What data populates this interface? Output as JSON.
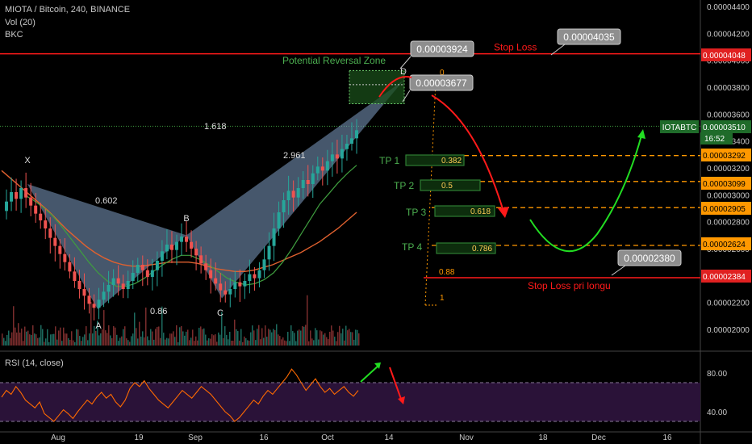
{
  "header": {
    "symbol_line": "MIOTA / Bitcoin, 240, BINANCE",
    "vol_line": "Vol (20)",
    "bkc_line": "BKC",
    "rsi_label": "RSI (14, close)"
  },
  "colors": {
    "background": "#000000",
    "candle_up": "#26a69a",
    "candle_down": "#ef5350",
    "pattern_fill": "#7f9fc4",
    "ma_orange": "#e0612f",
    "ma_green": "#3f9e3f",
    "stop_loss": "#ff1a1a",
    "tp_line": "#ff9800",
    "tp_box": "#2e7d32",
    "tp_text": "#4caf50",
    "rsi_line": "#ff6a00",
    "rsi_band": "#2a1238",
    "arrow_green": "#22dd22",
    "arrow_red": "#ff1a1a"
  },
  "chart_data": {
    "type": "line",
    "title": "MIOTA / Bitcoin, 240, BINANCE",
    "y_axis": {
      "ticks": [
        "0.00004400",
        "0.00004200",
        "0.00004000",
        "0.00003800",
        "0.00003600",
        "0.00003400",
        "0.00003200",
        "0.00003000",
        "0.00002800",
        "0.00002600",
        "0.00002400",
        "0.00002200",
        "0.00002000"
      ],
      "range": [
        1.96e-05,
        4.48e-05
      ]
    },
    "x_axis": {
      "ticks": [
        "Aug",
        "19",
        "Sep",
        "16",
        "Oct",
        "14",
        "Nov",
        "18",
        "Dec",
        "16"
      ]
    },
    "price_labels": [
      {
        "value": "0.00004048",
        "kind": "stop_loss"
      },
      {
        "value": "0.00003510",
        "kind": "current"
      },
      {
        "value": "16:52",
        "kind": "timer"
      },
      {
        "value": "0.00003292",
        "kind": "tp"
      },
      {
        "value": "0.00003099",
        "kind": "tp"
      },
      {
        "value": "0.00002905",
        "kind": "tp"
      },
      {
        "value": "0.00002624",
        "kind": "tp"
      },
      {
        "value": "0.00002384",
        "kind": "stop_long"
      }
    ],
    "symbol_tag": "IOTABTC",
    "pattern_points": [
      {
        "label": "X",
        "y": 3.08e-05
      },
      {
        "label": "A",
        "y": 2.15e-05
      },
      {
        "label": "B",
        "y": 2.7e-05
      },
      {
        "label": "C",
        "y": 2.23e-05
      },
      {
        "label": "D",
        "y": 3.85e-05
      }
    ],
    "pattern_ratios": [
      "0.602",
      "0.86",
      "1.618",
      "2.961"
    ],
    "prz_label": "Potential Reversal Zone",
    "callouts": [
      "0.00003924",
      "0.00003677",
      "0.00004035",
      "0.00002380"
    ],
    "stop_loss_label": "Stop Loss",
    "stop_long_label": "Stop Loss pri longu",
    "targets": [
      {
        "label": "TP 1",
        "fib": "0.382",
        "price": 3.292e-05
      },
      {
        "label": "TP 2",
        "fib": "0.5",
        "price": 3.099e-05
      },
      {
        "label": "TP 3",
        "fib": "0.618",
        "price": 2.905e-05
      },
      {
        "label": "TP 4",
        "fib": "0.786",
        "price": 2.624e-05
      }
    ],
    "fib_extra": [
      "0",
      "0.88",
      "1"
    ],
    "price_series": [
      2.88e-05,
      2.95e-05,
      3.02e-05,
      2.97e-05,
      3.05e-05,
      2.98e-05,
      2.92e-05,
      2.86e-05,
      2.81e-05,
      2.75e-05,
      2.68e-05,
      2.62e-05,
      2.56e-05,
      2.5e-05,
      2.43e-05,
      2.36e-05,
      2.3e-05,
      2.25e-05,
      2.19e-05,
      2.16e-05,
      2.22e-05,
      2.28e-05,
      2.33e-05,
      2.38e-05,
      2.34e-05,
      2.3e-05,
      2.36e-05,
      2.42e-05,
      2.48e-05,
      2.44e-05,
      2.39e-05,
      2.44e-05,
      2.51e-05,
      2.58e-05,
      2.63e-05,
      2.59e-05,
      2.65e-05,
      2.69e-05,
      2.65e-05,
      2.6e-05,
      2.55e-05,
      2.49e-05,
      2.44e-05,
      2.38e-05,
      2.34e-05,
      2.29e-05,
      2.26e-05,
      2.3e-05,
      2.35e-05,
      2.32e-05,
      2.36e-05,
      2.41e-05,
      2.38e-05,
      2.44e-05,
      2.52e-05,
      2.62e-05,
      2.75e-05,
      2.87e-05,
      2.96e-05,
      3.03e-05,
      2.98e-05,
      3.05e-05,
      3.11e-05,
      3.08e-05,
      3.16e-05,
      3.21e-05,
      3.18e-05,
      3.25e-05,
      3.3e-05,
      3.27e-05,
      3.34e-05,
      3.38e-05,
      3.42e-05,
      3.48e-05
    ],
    "ma_slow": [
      3.18e-05,
      3.12e-05,
      3.06e-05,
      3e-05,
      2.94e-05,
      2.88e-05,
      2.81e-05,
      2.74e-05,
      2.68e-05,
      2.62e-05,
      2.57e-05,
      2.53e-05,
      2.5e-05,
      2.48e-05,
      2.47e-05,
      2.47e-05,
      2.48e-05,
      2.49e-05,
      2.5e-05,
      2.5e-05,
      2.5e-05,
      2.49e-05,
      2.47e-05,
      2.45e-05,
      2.44e-05,
      2.43e-05,
      2.43e-05,
      2.44e-05,
      2.46e-05,
      2.48e-05,
      2.51e-05,
      2.54e-05,
      2.57e-05,
      2.61e-05,
      2.65e-05,
      2.7e-05,
      2.75e-05,
      2.81e-05,
      2.87e-05
    ],
    "ma_fast": [
      3e-05,
      2.96e-05,
      2.91e-05,
      2.85e-05,
      2.77e-05,
      2.68e-05,
      2.59e-05,
      2.5e-05,
      2.42e-05,
      2.36e-05,
      2.32e-05,
      2.32e-05,
      2.34e-05,
      2.38e-05,
      2.43e-05,
      2.48e-05,
      2.52e-05,
      2.55e-05,
      2.55e-05,
      2.52e-05,
      2.48e-05,
      2.43e-05,
      2.38e-05,
      2.35e-05,
      2.33e-05,
      2.34e-05,
      2.37e-05,
      2.42e-05,
      2.5e-05,
      2.6e-05,
      2.71e-05,
      2.82e-05,
      2.93e-05,
      3.01e-05,
      3.09e-05,
      3.16e-05,
      3.22e-05
    ],
    "rsi_ticks": [
      "80.00",
      "40.00"
    ],
    "rsi_range": [
      20,
      100
    ],
    "rsi_series": [
      55,
      62,
      58,
      66,
      60,
      52,
      48,
      44,
      50,
      38,
      34,
      30,
      36,
      42,
      38,
      33,
      40,
      46,
      52,
      48,
      55,
      60,
      54,
      58,
      50,
      45,
      52,
      64,
      70,
      66,
      72,
      64,
      58,
      52,
      48,
      44,
      50,
      56,
      62,
      58,
      54,
      60,
      66,
      62,
      58,
      52,
      46,
      40,
      36,
      30,
      34,
      40,
      46,
      52,
      48,
      56,
      62,
      58,
      64,
      70,
      76,
      84,
      78,
      70,
      62,
      68,
      74,
      66,
      60,
      64,
      58,
      62,
      66,
      60,
      56,
      62
    ]
  }
}
